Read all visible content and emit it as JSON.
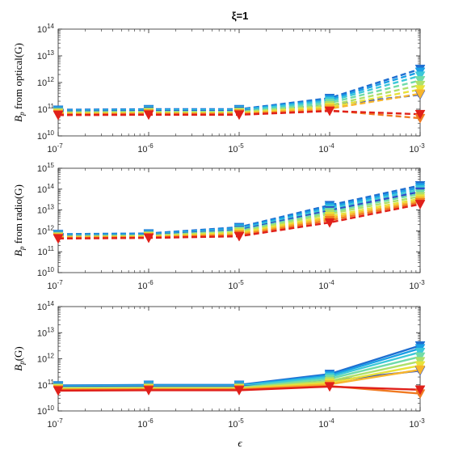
{
  "figure": {
    "title": "ξ=1",
    "xlabel": "ϵ"
  },
  "chart_data": [
    {
      "type": "line",
      "title": "ξ=1",
      "xlabel": "",
      "ylabel": "B_p from optical(G)",
      "ylabel_parts": {
        "main": "B",
        "sub": "p",
        "rest": " from optical(G)"
      },
      "xscale": "log",
      "yscale": "log",
      "xlim": [
        1e-07,
        0.001
      ],
      "ylim": [
        10000000000.0,
        100000000000000.0
      ],
      "xticks": [
        {
          "base": "10",
          "exp": "-7"
        },
        {
          "base": "10",
          "exp": "-6"
        },
        {
          "base": "10",
          "exp": "-5"
        },
        {
          "base": "10",
          "exp": "-4"
        },
        {
          "base": "10",
          "exp": "-3"
        }
      ],
      "yticks": [
        {
          "base": "10",
          "exp": "10"
        },
        {
          "base": "10",
          "exp": "11"
        },
        {
          "base": "10",
          "exp": "12"
        },
        {
          "base": "10",
          "exp": "13"
        },
        {
          "base": "10",
          "exp": "14"
        }
      ],
      "linestyle": "dashed",
      "marker": "triangle-down",
      "x": [
        1e-07,
        1e-06,
        1e-05,
        0.0001,
        0.001
      ],
      "series": [
        {
          "color": "#1f6fd1",
          "values": [
            95000000000.0,
            100000000000.0,
            100000000000.0,
            260000000000.0,
            3200000000000.0
          ]
        },
        {
          "color": "#1aa0e6",
          "values": [
            90000000000.0,
            95000000000.0,
            95000000000.0,
            230000000000.0,
            2500000000000.0
          ]
        },
        {
          "color": "#3cc8d8",
          "values": [
            86000000000.0,
            90000000000.0,
            90000000000.0,
            200000000000.0,
            1800000000000.0
          ]
        },
        {
          "color": "#2b4fc8",
          "values": [
            82000000000.0,
            85000000000.0,
            85000000000.0,
            140000000000.0,
            350000000000.0
          ]
        },
        {
          "color": "#70dba8",
          "values": [
            78000000000.0,
            80000000000.0,
            80000000000.0,
            170000000000.0,
            1200000000000.0
          ]
        },
        {
          "color": "#aee06a",
          "values": [
            74000000000.0,
            76000000000.0,
            76000000000.0,
            140000000000.0,
            800000000000.0
          ]
        },
        {
          "color": "#e8e23a",
          "values": [
            70000000000.0,
            72000000000.0,
            72000000000.0,
            120000000000.0,
            550000000000.0
          ]
        },
        {
          "color": "#f7b52c",
          "values": [
            67000000000.0,
            69000000000.0,
            69000000000.0,
            105000000000.0,
            380000000000.0
          ]
        },
        {
          "color": "#f07a22",
          "values": [
            64000000000.0,
            66000000000.0,
            66000000000.0,
            90000000000.0,
            46000000000.0
          ]
        },
        {
          "color": "#e0201a",
          "values": [
            60000000000.0,
            62000000000.0,
            62000000000.0,
            86000000000.0,
            65000000000.0
          ]
        }
      ]
    },
    {
      "type": "line",
      "title": "",
      "xlabel": "",
      "ylabel": "B_p from radio(G)",
      "ylabel_parts": {
        "main": "B",
        "sub": "p",
        "rest": " from radio(G)"
      },
      "xscale": "log",
      "yscale": "log",
      "xlim": [
        1e-07,
        0.001
      ],
      "ylim": [
        10000000000.0,
        1000000000000000.0
      ],
      "xticks": [
        {
          "base": "10",
          "exp": "-7"
        },
        {
          "base": "10",
          "exp": "-6"
        },
        {
          "base": "10",
          "exp": "-5"
        },
        {
          "base": "10",
          "exp": "-4"
        },
        {
          "base": "10",
          "exp": "-3"
        }
      ],
      "yticks": [
        {
          "base": "10",
          "exp": "10"
        },
        {
          "base": "10",
          "exp": "11"
        },
        {
          "base": "10",
          "exp": "12"
        },
        {
          "base": "10",
          "exp": "13"
        },
        {
          "base": "10",
          "exp": "14"
        },
        {
          "base": "10",
          "exp": "15"
        }
      ],
      "linestyle": "dashed",
      "marker": "triangle-down",
      "x": [
        1e-07,
        1e-06,
        1e-05,
        0.0001,
        0.001
      ],
      "series": [
        {
          "color": "#1f6fd1",
          "values": [
            700000000000.0,
            750000000000.0,
            1500000000000.0,
            17000000000000.0,
            150000000000000.0
          ]
        },
        {
          "color": "#1aa0e6",
          "values": [
            660000000000.0,
            700000000000.0,
            1350000000000.0,
            14000000000000.0,
            120000000000000.0
          ]
        },
        {
          "color": "#3cc8d8",
          "values": [
            620000000000.0,
            660000000000.0,
            1200000000000.0,
            11500000000000.0,
            95000000000000.0
          ]
        },
        {
          "color": "#2b4fc8",
          "values": [
            590000000000.0,
            630000000000.0,
            1100000000000.0,
            9500000000000.0,
            75000000000000.0
          ]
        },
        {
          "color": "#70dba8",
          "values": [
            560000000000.0,
            600000000000.0,
            1000000000000.0,
            8000000000000.0,
            60000000000000.0
          ]
        },
        {
          "color": "#aee06a",
          "values": [
            530000000000.0,
            570000000000.0,
            900000000000.0,
            6500000000000.0,
            45000000000000.0
          ]
        },
        {
          "color": "#e8e23a",
          "values": [
            500000000000.0,
            540000000000.0,
            800000000000.0,
            5000000000000.0,
            35000000000000.0
          ]
        },
        {
          "color": "#f7b52c",
          "values": [
            480000000000.0,
            510000000000.0,
            700000000000.0,
            4000000000000.0,
            28000000000000.0
          ]
        },
        {
          "color": "#f07a22",
          "values": [
            460000000000.0,
            490000000000.0,
            620000000000.0,
            3200000000000.0,
            23000000000000.0
          ]
        },
        {
          "color": "#e0201a",
          "values": [
            430000000000.0,
            460000000000.0,
            550000000000.0,
            2500000000000.0,
            19000000000000.0
          ]
        }
      ]
    },
    {
      "type": "line",
      "title": "",
      "xlabel": "ϵ",
      "ylabel": "B_p(G)",
      "ylabel_parts": {
        "main": "B",
        "sub": "p",
        "rest": "(G)"
      },
      "xscale": "log",
      "yscale": "log",
      "xlim": [
        1e-07,
        0.001
      ],
      "ylim": [
        10000000000.0,
        100000000000000.0
      ],
      "xticks": [
        {
          "base": "10",
          "exp": "-7"
        },
        {
          "base": "10",
          "exp": "-6"
        },
        {
          "base": "10",
          "exp": "-5"
        },
        {
          "base": "10",
          "exp": "-4"
        },
        {
          "base": "10",
          "exp": "-3"
        }
      ],
      "yticks": [
        {
          "base": "10",
          "exp": "10"
        },
        {
          "base": "10",
          "exp": "11"
        },
        {
          "base": "10",
          "exp": "12"
        },
        {
          "base": "10",
          "exp": "13"
        },
        {
          "base": "10",
          "exp": "14"
        }
      ],
      "linestyle": "solid",
      "marker": "triangle-down",
      "x": [
        1e-07,
        1e-06,
        1e-05,
        0.0001,
        0.001
      ],
      "series": [
        {
          "color": "#1f6fd1",
          "values": [
            95000000000.0,
            100000000000.0,
            100000000000.0,
            260000000000.0,
            3200000000000.0
          ]
        },
        {
          "color": "#1aa0e6",
          "values": [
            90000000000.0,
            95000000000.0,
            95000000000.0,
            230000000000.0,
            2500000000000.0
          ]
        },
        {
          "color": "#3cc8d8",
          "values": [
            86000000000.0,
            90000000000.0,
            90000000000.0,
            200000000000.0,
            1800000000000.0
          ]
        },
        {
          "color": "#2b4fc8",
          "values": [
            82000000000.0,
            85000000000.0,
            85000000000.0,
            140000000000.0,
            350000000000.0
          ]
        },
        {
          "color": "#70dba8",
          "values": [
            78000000000.0,
            80000000000.0,
            80000000000.0,
            170000000000.0,
            1200000000000.0
          ]
        },
        {
          "color": "#aee06a",
          "values": [
            74000000000.0,
            76000000000.0,
            76000000000.0,
            140000000000.0,
            800000000000.0
          ]
        },
        {
          "color": "#e8e23a",
          "values": [
            70000000000.0,
            72000000000.0,
            72000000000.0,
            120000000000.0,
            550000000000.0
          ]
        },
        {
          "color": "#f7b52c",
          "values": [
            67000000000.0,
            69000000000.0,
            69000000000.0,
            105000000000.0,
            380000000000.0
          ]
        },
        {
          "color": "#f07a22",
          "values": [
            64000000000.0,
            66000000000.0,
            66000000000.0,
            90000000000.0,
            46000000000.0
          ]
        },
        {
          "color": "#e0201a",
          "values": [
            60000000000.0,
            62000000000.0,
            62000000000.0,
            86000000000.0,
            65000000000.0
          ]
        }
      ]
    }
  ]
}
